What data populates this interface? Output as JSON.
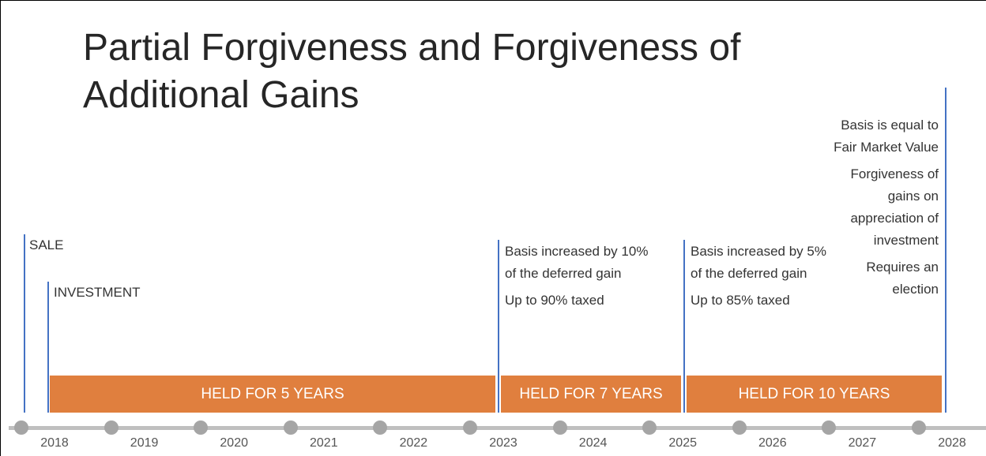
{
  "title": "Partial Forgiveness and Forgiveness of Additional Gains",
  "markers": {
    "sale": "SALE",
    "investment": "INVESTMENT"
  },
  "notes": [
    [
      "Basis increased by 10% of the deferred gain",
      "Up to 90% taxed"
    ],
    [
      "Basis increased by 5% of the deferred gain",
      "Up to 85% taxed"
    ],
    [
      "Basis is equal to Fair Market Value",
      "Forgiveness of gains on appreciation of investment",
      "Requires an election"
    ]
  ],
  "bars": [
    "HELD FOR 5 YEARS",
    "HELD FOR 7 YEARS",
    "HELD FOR 10 YEARS"
  ],
  "years": [
    "2018",
    "2019",
    "2020",
    "2021",
    "2022",
    "2023",
    "2024",
    "2025",
    "2026",
    "2027",
    "2028"
  ]
}
